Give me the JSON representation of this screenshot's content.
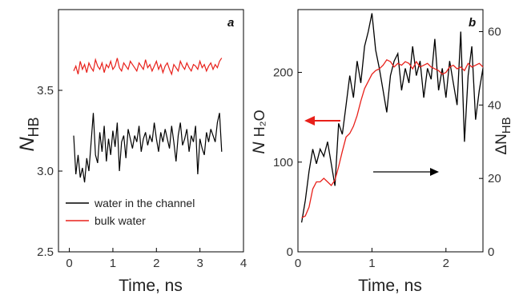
{
  "chart_data": [
    {
      "panel": "a",
      "type": "line",
      "xlabel": "Time, ns",
      "ylabel": {
        "main": "N",
        "sub": "HB"
      },
      "xlim": [
        -0.25,
        4
      ],
      "ylim": [
        2.5,
        4.0
      ],
      "xticks": [
        "0",
        "1",
        "2",
        "3",
        "4"
      ],
      "yticks": [
        "2.5",
        "3.0",
        "3.5"
      ],
      "legend_position": "bottom-left",
      "series": [
        {
          "name": "water in the channel",
          "color": "#000000",
          "x": [
            0.1,
            0.15,
            0.2,
            0.25,
            0.3,
            0.35,
            0.4,
            0.45,
            0.5,
            0.55,
            0.6,
            0.65,
            0.7,
            0.75,
            0.8,
            0.85,
            0.9,
            0.95,
            1.0,
            1.05,
            1.1,
            1.15,
            1.2,
            1.25,
            1.3,
            1.35,
            1.4,
            1.45,
            1.5,
            1.55,
            1.6,
            1.65,
            1.7,
            1.75,
            1.8,
            1.85,
            1.9,
            1.95,
            2.0,
            2.05,
            2.1,
            2.15,
            2.2,
            2.25,
            2.3,
            2.35,
            2.4,
            2.45,
            2.5,
            2.55,
            2.6,
            2.65,
            2.7,
            2.75,
            2.8,
            2.85,
            2.9,
            2.95,
            3.0,
            3.05,
            3.1,
            3.15,
            3.2,
            3.25,
            3.3,
            3.35,
            3.4,
            3.45,
            3.5
          ],
          "values": [
            3.22,
            2.98,
            3.1,
            2.96,
            3.02,
            2.93,
            3.08,
            3.0,
            3.18,
            3.36,
            3.1,
            3.05,
            3.24,
            3.12,
            3.28,
            3.06,
            3.2,
            3.1,
            3.25,
            3.15,
            3.3,
            3.0,
            3.18,
            3.22,
            3.08,
            3.26,
            3.2,
            3.14,
            3.22,
            3.18,
            3.28,
            3.12,
            3.2,
            3.24,
            3.16,
            3.22,
            3.18,
            3.3,
            3.2,
            3.12,
            3.24,
            3.18,
            3.26,
            3.2,
            3.14,
            3.28,
            3.18,
            3.06,
            3.22,
            3.3,
            3.16,
            3.2,
            3.26,
            3.12,
            3.22,
            3.18,
            3.28,
            2.98,
            3.2,
            3.14,
            3.1,
            3.24,
            3.18,
            3.26,
            3.22,
            3.18,
            3.3,
            3.36,
            3.12
          ]
        },
        {
          "name": "bulk water",
          "color": "#e8201a",
          "x": [
            0.1,
            0.15,
            0.2,
            0.25,
            0.3,
            0.35,
            0.4,
            0.45,
            0.5,
            0.55,
            0.6,
            0.65,
            0.7,
            0.75,
            0.8,
            0.85,
            0.9,
            0.95,
            1.0,
            1.05,
            1.1,
            1.15,
            1.2,
            1.25,
            1.3,
            1.35,
            1.4,
            1.45,
            1.5,
            1.55,
            1.6,
            1.65,
            1.7,
            1.75,
            1.8,
            1.85,
            1.9,
            1.95,
            2.0,
            2.05,
            2.1,
            2.15,
            2.2,
            2.25,
            2.3,
            2.35,
            2.4,
            2.45,
            2.5,
            2.55,
            2.6,
            2.65,
            2.7,
            2.75,
            2.8,
            2.85,
            2.9,
            2.95,
            3.0,
            3.05,
            3.1,
            3.15,
            3.2,
            3.25,
            3.3,
            3.35,
            3.4,
            3.45,
            3.5
          ],
          "values": [
            3.62,
            3.65,
            3.6,
            3.68,
            3.63,
            3.66,
            3.61,
            3.67,
            3.64,
            3.62,
            3.69,
            3.65,
            3.63,
            3.67,
            3.61,
            3.66,
            3.64,
            3.68,
            3.63,
            3.65,
            3.7,
            3.64,
            3.62,
            3.67,
            3.65,
            3.63,
            3.68,
            3.66,
            3.64,
            3.62,
            3.67,
            3.65,
            3.63,
            3.69,
            3.64,
            3.66,
            3.62,
            3.65,
            3.68,
            3.63,
            3.66,
            3.61,
            3.65,
            3.67,
            3.63,
            3.6,
            3.66,
            3.64,
            3.62,
            3.68,
            3.65,
            3.63,
            3.67,
            3.64,
            3.62,
            3.66,
            3.65,
            3.63,
            3.68,
            3.64,
            3.66,
            3.62,
            3.65,
            3.67,
            3.63,
            3.66,
            3.64,
            3.68,
            3.7
          ]
        }
      ]
    },
    {
      "panel": "b",
      "type": "line",
      "xlabel": "Time, ns",
      "ylabel_left": {
        "main": "N",
        "sub": "H2O"
      },
      "ylabel_right": {
        "prefix": "ΔN",
        "sub": "HB"
      },
      "xlim": [
        0,
        2.5
      ],
      "ylim_left": [
        0,
        270
      ],
      "ylim_right": [
        0,
        66
      ],
      "xticks": [
        "0",
        "1",
        "2"
      ],
      "yticks_left": [
        "0",
        "100",
        "200"
      ],
      "yticks_right": [
        "0",
        "20",
        "40",
        "60"
      ],
      "annotations": [
        "red arrow pointing left (left axis)",
        "black arrow pointing right (right axis)"
      ],
      "series": [
        {
          "axis": "right",
          "color": "#000000",
          "x": [
            0.05,
            0.1,
            0.15,
            0.2,
            0.25,
            0.3,
            0.35,
            0.4,
            0.45,
            0.5,
            0.55,
            0.6,
            0.65,
            0.7,
            0.75,
            0.8,
            0.85,
            0.9,
            0.95,
            1.0,
            1.05,
            1.1,
            1.15,
            1.2,
            1.25,
            1.3,
            1.35,
            1.4,
            1.45,
            1.5,
            1.55,
            1.6,
            1.65,
            1.7,
            1.75,
            1.8,
            1.85,
            1.9,
            1.95,
            2.0,
            2.05,
            2.1,
            2.15,
            2.2,
            2.25,
            2.3,
            2.35,
            2.4,
            2.45,
            2.5
          ],
          "values": [
            8,
            14,
            22,
            28,
            24,
            28,
            26,
            30,
            24,
            18,
            35,
            32,
            40,
            48,
            42,
            52,
            46,
            56,
            60,
            65,
            55,
            50,
            44,
            38,
            48,
            52,
            54,
            44,
            50,
            46,
            56,
            48,
            52,
            42,
            50,
            47,
            58,
            44,
            50,
            42,
            52,
            46,
            40,
            60,
            30,
            48,
            56,
            36,
            44,
            50
          ]
        },
        {
          "axis": "left",
          "color": "#e8201a",
          "x": [
            0.05,
            0.1,
            0.15,
            0.2,
            0.25,
            0.3,
            0.35,
            0.4,
            0.45,
            0.5,
            0.55,
            0.6,
            0.65,
            0.7,
            0.75,
            0.8,
            0.85,
            0.9,
            0.95,
            1.0,
            1.05,
            1.1,
            1.15,
            1.2,
            1.25,
            1.3,
            1.35,
            1.4,
            1.45,
            1.5,
            1.55,
            1.6,
            1.65,
            1.7,
            1.75,
            1.8,
            1.85,
            1.9,
            1.95,
            2.0,
            2.05,
            2.1,
            2.15,
            2.2,
            2.25,
            2.3,
            2.35,
            2.4,
            2.45,
            2.5
          ],
          "values": [
            38,
            40,
            50,
            70,
            78,
            78,
            82,
            78,
            74,
            80,
            95,
            112,
            128,
            132,
            140,
            152,
            168,
            182,
            190,
            198,
            202,
            204,
            208,
            214,
            212,
            206,
            210,
            208,
            212,
            210,
            204,
            212,
            206,
            208,
            210,
            206,
            204,
            202,
            198,
            200,
            206,
            208,
            204,
            206,
            202,
            210,
            206,
            208,
            210,
            206
          ]
        }
      ]
    }
  ],
  "legend": [
    {
      "label": "water in the channel",
      "color": "#000000"
    },
    {
      "label": "bulk water",
      "color": "#e8201a"
    }
  ],
  "panel_a": {
    "tag": "a",
    "xlabel": "Time, ns",
    "ylabel_main": "N",
    "ylabel_sub": "HB"
  },
  "panel_b": {
    "tag": "b",
    "xlabel": "Time, ns",
    "ylabel_left_main": "N",
    "ylabel_left_sub": "H₂O",
    "ylabel_right_main": "ΔN",
    "ylabel_right_sub": "HB"
  }
}
